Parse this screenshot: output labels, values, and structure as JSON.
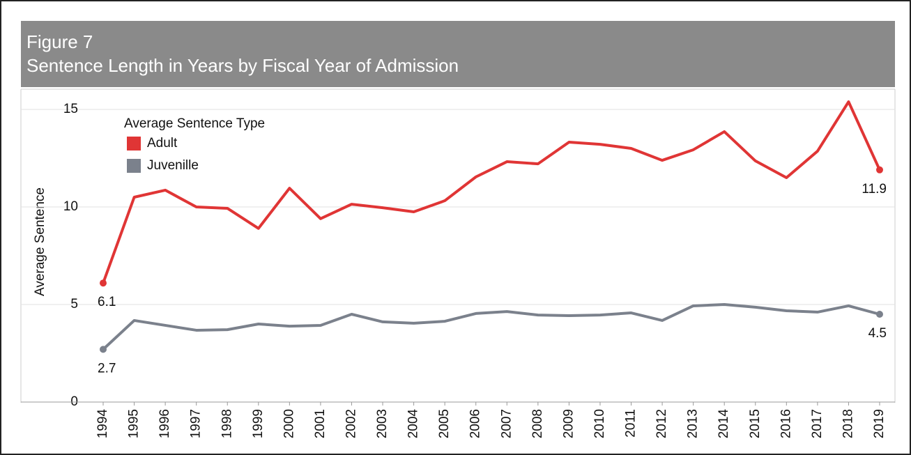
{
  "chart_data": {
    "type": "line",
    "title": "Figure 7",
    "subtitle": "Sentence Length in Years by Fiscal Year of Admission",
    "y_label": "Average Sentence",
    "legend_title": "Average Sentence Type",
    "legend": "top-left",
    "grid": true,
    "categories": [
      "1994",
      "1995",
      "1996",
      "1997",
      "1998",
      "1999",
      "2000",
      "2001",
      "2002",
      "2003",
      "2004",
      "2005",
      "2006",
      "2007",
      "2008",
      "2009",
      "2010",
      "2011",
      "2012",
      "2013",
      "2014",
      "2015",
      "2016",
      "2017",
      "2018",
      "2019"
    ],
    "ylim": [
      0,
      16
    ],
    "yticks": [
      0,
      5,
      10,
      15
    ],
    "series": [
      {
        "name": "Adult",
        "color": "#e03535",
        "values": [
          6.1,
          10.5,
          10.86,
          10.0,
          9.93,
          8.9,
          10.96,
          9.4,
          10.14,
          9.96,
          9.75,
          10.32,
          11.54,
          12.32,
          12.21,
          13.32,
          13.21,
          13.0,
          12.39,
          12.93,
          13.86,
          12.36,
          11.5,
          12.86,
          15.39,
          11.9
        ],
        "value_labels": [
          "6.1",
          null,
          null,
          null,
          null,
          null,
          null,
          null,
          null,
          null,
          null,
          null,
          null,
          null,
          null,
          null,
          null,
          null,
          null,
          null,
          null,
          null,
          null,
          null,
          null,
          "11.9"
        ]
      },
      {
        "name": "Juvenille",
        "color": "#7b818c",
        "values": [
          2.7,
          4.18,
          3.93,
          3.68,
          3.71,
          4.0,
          3.89,
          3.93,
          4.5,
          4.11,
          4.04,
          4.14,
          4.54,
          4.64,
          4.46,
          4.43,
          4.46,
          4.57,
          4.18,
          4.93,
          5.0,
          4.86,
          4.68,
          4.61,
          4.93,
          4.5
        ],
        "value_labels": [
          "2.7",
          null,
          null,
          null,
          null,
          null,
          null,
          null,
          null,
          null,
          null,
          null,
          null,
          null,
          null,
          null,
          null,
          null,
          null,
          null,
          null,
          null,
          null,
          null,
          null,
          "4.5"
        ]
      }
    ]
  }
}
